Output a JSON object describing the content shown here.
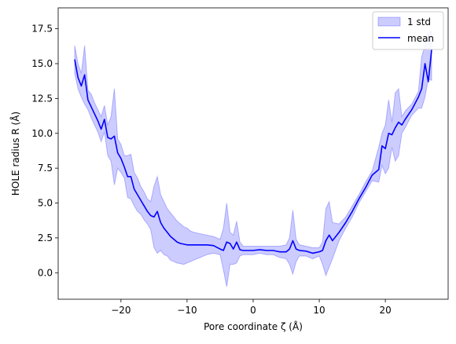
{
  "chart_data": {
    "type": "area",
    "xlabel": "Pore coordinate ζ (Å)",
    "ylabel": "HOLE radius R (Å)",
    "xlim": [
      -29.5,
      29.5
    ],
    "ylim": [
      -1.9,
      19.0
    ],
    "xticks": [
      -20,
      -10,
      0,
      10,
      20
    ],
    "xtick_labels": [
      "−20",
      "−10",
      "0",
      "10",
      "20"
    ],
    "yticks": [
      0.0,
      2.5,
      5.0,
      7.5,
      10.0,
      12.5,
      15.0,
      17.5
    ],
    "ytick_labels": [
      "0.0",
      "2.5",
      "5.0",
      "7.5",
      "10.0",
      "12.5",
      "15.0",
      "17.5"
    ],
    "grid": false,
    "legend_position": "top-right",
    "colors": {
      "mean": "#0000ff",
      "band": "#0000ff",
      "band_opacity": 0.2,
      "axes": "#000000"
    },
    "series": [
      {
        "name": "mean",
        "kind": "line",
        "x": [
          -27,
          -26.5,
          -26,
          -25.5,
          -25,
          -24.5,
          -24,
          -23.5,
          -23,
          -22.5,
          -22,
          -21.5,
          -21,
          -20.5,
          -20,
          -19.5,
          -19,
          -18.5,
          -18,
          -17.5,
          -17,
          -16.5,
          -16,
          -15.5,
          -15,
          -14.5,
          -14,
          -13.5,
          -13,
          -12.5,
          -12,
          -11.5,
          -11,
          -10.5,
          -10,
          -9.5,
          -9,
          -8,
          -7,
          -6,
          -5,
          -4.5,
          -4,
          -3.5,
          -3,
          -2.5,
          -2,
          -1.5,
          -1,
          0,
          1,
          2,
          3,
          4,
          5,
          5.5,
          6,
          6.5,
          7,
          8,
          9,
          10,
          10.5,
          11,
          11.5,
          12,
          13,
          14,
          15,
          16,
          17,
          18,
          19,
          19.5,
          20,
          20.5,
          21,
          21.5,
          22,
          22.5,
          23,
          24,
          25,
          25.5,
          26,
          26.5,
          27
        ],
        "y": [
          15.3,
          14.0,
          13.4,
          14.2,
          12.4,
          11.9,
          11.4,
          10.9,
          10.3,
          11.0,
          9.7,
          9.6,
          9.8,
          8.6,
          8.2,
          7.6,
          6.9,
          6.9,
          6.0,
          5.6,
          5.2,
          4.8,
          4.4,
          4.1,
          4.0,
          4.4,
          3.6,
          3.2,
          2.9,
          2.6,
          2.4,
          2.2,
          2.1,
          2.05,
          2.0,
          2.0,
          2.0,
          2.0,
          2.0,
          1.95,
          1.7,
          1.6,
          2.2,
          2.1,
          1.7,
          2.2,
          1.65,
          1.6,
          1.6,
          1.6,
          1.65,
          1.6,
          1.6,
          1.5,
          1.5,
          1.7,
          2.3,
          1.7,
          1.6,
          1.55,
          1.4,
          1.5,
          1.6,
          2.3,
          2.7,
          2.3,
          2.9,
          3.6,
          4.4,
          5.3,
          6.1,
          7.0,
          7.4,
          9.1,
          8.9,
          10.0,
          9.9,
          10.4,
          10.8,
          10.6,
          11.0,
          11.7,
          12.6,
          13.2,
          15.0,
          13.7,
          16.0
        ]
      },
      {
        "name": "1 std",
        "kind": "band",
        "x": [
          -27,
          -26.5,
          -26,
          -25.5,
          -25,
          -24.5,
          -24,
          -23.5,
          -23,
          -22.5,
          -22,
          -21.5,
          -21,
          -20.5,
          -20,
          -19.5,
          -19,
          -18.5,
          -18,
          -17.5,
          -17,
          -16.5,
          -16,
          -15.5,
          -15,
          -14.5,
          -14,
          -13.5,
          -13,
          -12.5,
          -12,
          -11.5,
          -11,
          -10.5,
          -10,
          -9.5,
          -9,
          -8,
          -7,
          -6,
          -5,
          -4.5,
          -4,
          -3.5,
          -3,
          -2.5,
          -2,
          -1.5,
          -1,
          0,
          1,
          2,
          3,
          4,
          5,
          5.5,
          6,
          6.5,
          7,
          8,
          9,
          10,
          10.5,
          11,
          11.5,
          12,
          13,
          14,
          15,
          16,
          17,
          18,
          19,
          19.5,
          20,
          20.5,
          21,
          21.5,
          22,
          22.5,
          23,
          24,
          25,
          25.5,
          26,
          26.5,
          27
        ],
        "upper": [
          16.3,
          15.0,
          14.3,
          16.3,
          13.1,
          12.8,
          12.2,
          11.7,
          11.2,
          12.0,
          10.6,
          11.2,
          13.2,
          9.6,
          9.2,
          8.4,
          8.4,
          8.5,
          7.2,
          6.8,
          6.2,
          5.8,
          5.3,
          5.1,
          6.2,
          6.9,
          5.6,
          5.1,
          4.6,
          4.3,
          4.0,
          3.7,
          3.5,
          3.3,
          3.2,
          3.0,
          2.9,
          2.8,
          2.7,
          2.6,
          2.4,
          3.2,
          5.0,
          2.9,
          2.7,
          3.7,
          2.2,
          1.9,
          1.9,
          1.9,
          1.9,
          1.9,
          1.9,
          1.9,
          2.0,
          2.5,
          4.5,
          2.4,
          2.0,
          1.9,
          1.8,
          1.8,
          2.2,
          4.6,
          5.1,
          3.6,
          3.5,
          4.0,
          4.8,
          5.6,
          6.5,
          7.3,
          9.0,
          10.0,
          10.6,
          12.4,
          10.8,
          12.9,
          13.2,
          11.2,
          11.6,
          12.1,
          13.0,
          15.5,
          16.3,
          17.2,
          17.3
        ],
        "lower": [
          14.3,
          13.2,
          12.6,
          12.1,
          11.7,
          11.1,
          10.6,
          10.1,
          9.4,
          10.1,
          8.4,
          8.0,
          6.3,
          7.5,
          7.2,
          6.8,
          5.4,
          5.3,
          4.8,
          4.4,
          4.2,
          3.8,
          3.5,
          3.1,
          1.8,
          1.4,
          1.6,
          1.3,
          1.2,
          0.9,
          0.8,
          0.7,
          0.65,
          0.6,
          0.7,
          0.8,
          0.9,
          1.1,
          1.3,
          1.4,
          1.3,
          0.2,
          -1.0,
          0.6,
          0.6,
          0.7,
          1.2,
          1.3,
          1.3,
          1.3,
          1.4,
          1.3,
          1.3,
          1.1,
          1.0,
          0.6,
          -0.1,
          0.8,
          1.2,
          1.2,
          1.0,
          1.2,
          0.6,
          -0.2,
          0.4,
          1.0,
          2.3,
          3.2,
          4.0,
          5.0,
          5.8,
          6.6,
          6.5,
          7.7,
          7.1,
          7.5,
          9.0,
          8.0,
          8.4,
          10.0,
          10.4,
          11.3,
          11.8,
          11.8,
          12.6,
          13.9,
          13.8
        ]
      }
    ]
  }
}
